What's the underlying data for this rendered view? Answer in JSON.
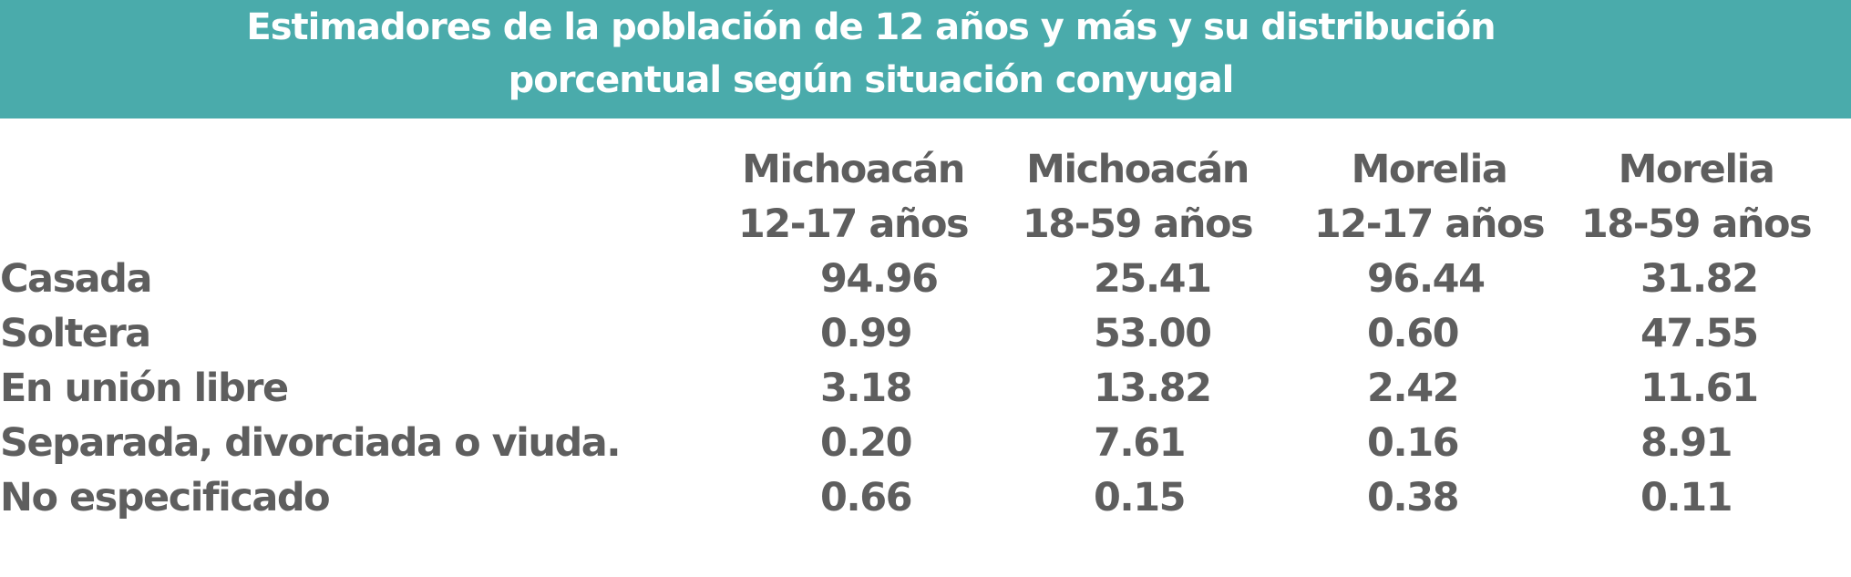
{
  "header": {
    "title": [
      "Estimadores de la población de 12 años y más y su distribución",
      "porcentual según situación conyugal"
    ]
  },
  "table": {
    "columns": [
      [
        "Michoacán",
        "12-17 años"
      ],
      [
        "Michoacán",
        "18-59 años"
      ],
      [
        "Morelia",
        "12-17 años"
      ],
      [
        "Morelia",
        "18-59 años"
      ]
    ],
    "rows": [
      {
        "label": "Casada",
        "values": [
          "94.96",
          "25.41",
          "96.44",
          "31.82"
        ]
      },
      {
        "label": "Soltera",
        "values": [
          "0.99",
          "53.00",
          "0.60",
          "47.55"
        ]
      },
      {
        "label": "En unión libre",
        "values": [
          "3.18",
          "13.82",
          "2.42",
          "11.61"
        ]
      },
      {
        "label": "Separada, divorciada o viuda.",
        "values": [
          "0.20",
          "7.61",
          "0.16",
          "8.91"
        ]
      },
      {
        "label": "No especificado",
        "values": [
          "0.66",
          "0.15",
          "0.38",
          "0.11"
        ]
      }
    ]
  }
}
